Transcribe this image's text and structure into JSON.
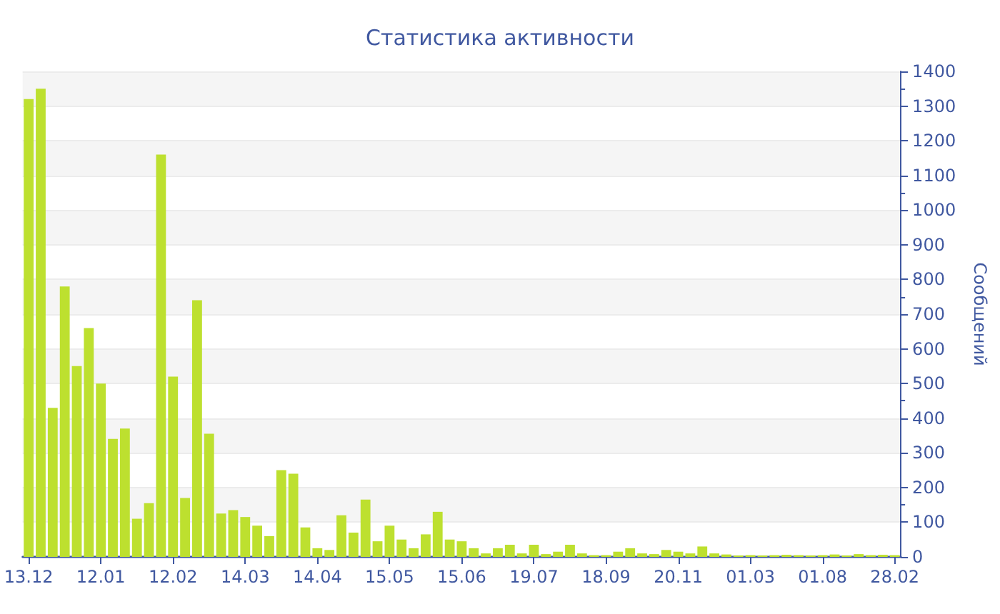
{
  "chart_data": {
    "type": "bar",
    "title": "Статистика активности",
    "ylabel": "Сообщений",
    "categories": [
      "13.12",
      null,
      null,
      null,
      null,
      null,
      "12.01",
      null,
      null,
      null,
      null,
      null,
      "12.02",
      null,
      null,
      null,
      null,
      null,
      "14.03",
      null,
      null,
      null,
      null,
      null,
      "14.04",
      null,
      null,
      null,
      null,
      null,
      "15.05",
      null,
      null,
      null,
      null,
      null,
      "15.06",
      null,
      null,
      null,
      null,
      null,
      "19.07",
      null,
      null,
      null,
      null,
      null,
      "18.09",
      null,
      null,
      null,
      null,
      null,
      "20.11",
      null,
      null,
      null,
      null,
      null,
      "01.03",
      null,
      null,
      null,
      null,
      null,
      "01.08",
      null,
      null,
      null,
      null,
      null,
      "28.02"
    ],
    "values": [
      1320,
      1350,
      430,
      780,
      550,
      660,
      500,
      340,
      370,
      110,
      155,
      1160,
      520,
      170,
      740,
      355,
      125,
      135,
      115,
      90,
      60,
      250,
      240,
      85,
      25,
      20,
      120,
      70,
      165,
      45,
      90,
      50,
      25,
      65,
      130,
      50,
      45,
      25,
      10,
      25,
      35,
      10,
      35,
      8,
      15,
      35,
      10,
      5,
      5,
      15,
      25,
      10,
      8,
      20,
      15,
      10,
      30,
      10,
      7,
      4,
      5,
      4,
      5,
      6,
      5,
      4,
      5,
      7,
      4,
      8,
      5,
      6,
      5
    ],
    "color": "#bde02f",
    "ylim": [
      0,
      1400
    ],
    "yticks": [
      0,
      100,
      200,
      300,
      400,
      500,
      600,
      700,
      800,
      900,
      1000,
      1100,
      1200,
      1300,
      1400
    ],
    "grid": true
  }
}
